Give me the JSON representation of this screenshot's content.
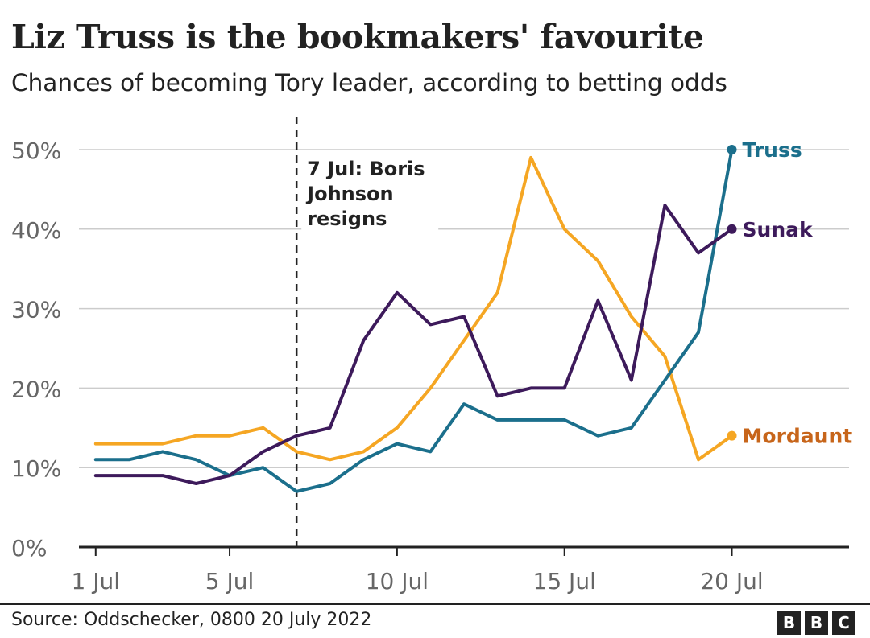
{
  "header": {
    "title": "Liz Truss is the bookmakers' favourite",
    "subtitle": "Chances of becoming Tory leader, according to betting odds"
  },
  "footer": {
    "source": "Source: Oddschecker, 0800 20 July 2022",
    "logo": [
      "B",
      "B",
      "C"
    ]
  },
  "colors": {
    "truss": "#1b6f8c",
    "sunak": "#3d1a5b",
    "mordaunt": "#f5a623",
    "mordaunt_label": "#c7651a",
    "grid": "#cccccc",
    "axis": "#222222",
    "tick_text": "#666666"
  },
  "chart_data": {
    "type": "line",
    "title": "Liz Truss is the bookmakers' favourite",
    "subtitle": "Chances of becoming Tory leader, according to betting odds",
    "xlabel": "",
    "ylabel": "",
    "x": [
      1,
      2,
      3,
      4,
      5,
      6,
      7,
      8,
      9,
      10,
      11,
      12,
      13,
      14,
      15,
      16,
      17,
      18,
      19,
      20
    ],
    "x_unit": "July 2022",
    "x_ticks": [
      1,
      5,
      10,
      15,
      20
    ],
    "x_tick_labels": [
      "1 Jul",
      "5 Jul",
      "10 Jul",
      "15 Jul",
      "20 Jul"
    ],
    "xlim": [
      0.5,
      23.5
    ],
    "ylim": [
      0,
      50
    ],
    "y_ticks": [
      0,
      10,
      20,
      30,
      40,
      50
    ],
    "y_tick_labels": [
      "0%",
      "10%",
      "20%",
      "30%",
      "40%",
      "50%"
    ],
    "grid": "horizontal",
    "series": [
      {
        "name": "Truss",
        "values": [
          11,
          11,
          12,
          11,
          9,
          10,
          7,
          8,
          11,
          13,
          12,
          18,
          16,
          16,
          16,
          14,
          15,
          21,
          27,
          50
        ]
      },
      {
        "name": "Sunak",
        "values": [
          9,
          9,
          9,
          8,
          9,
          12,
          14,
          15,
          26,
          32,
          28,
          29,
          19,
          20,
          20,
          31,
          21,
          43,
          37,
          40
        ]
      },
      {
        "name": "Mordaunt",
        "values": [
          13,
          13,
          13,
          14,
          14,
          15,
          12,
          11,
          12,
          15,
          20,
          26,
          32,
          49,
          40,
          36,
          29,
          24,
          11,
          14
        ]
      }
    ],
    "annotations": [
      {
        "x": 7,
        "lines": [
          "7 Jul: Boris",
          "Johnson",
          "resigns"
        ],
        "style": "dashed-vertical"
      }
    ]
  }
}
